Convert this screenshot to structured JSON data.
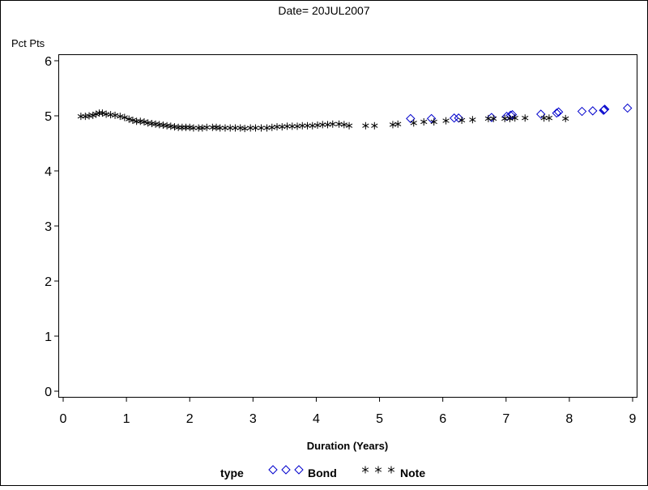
{
  "chart_data": {
    "type": "scatter",
    "title": "Date= 20JUL2007",
    "xlabel": "Duration (Years)",
    "ylabel": "Pct Pts",
    "xlim": [
      0,
      9
    ],
    "ylim": [
      0,
      6
    ],
    "xticks": [
      "0",
      "1",
      "2",
      "3",
      "4",
      "5",
      "6",
      "7",
      "8",
      "9"
    ],
    "yticks": [
      "0",
      "1",
      "2",
      "3",
      "4",
      "5",
      "6"
    ],
    "grid": false,
    "legend": {
      "title": "type",
      "position": "bottom",
      "entries": [
        {
          "label": "Bond",
          "symbol": "diamond",
          "color": "#0000cc"
        },
        {
          "label": "Note",
          "symbol": "asterisk",
          "color": "#000000"
        }
      ]
    },
    "series": [
      {
        "name": "Bond",
        "symbol": "diamond",
        "color": "#0000cc",
        "points": [
          [
            5.49,
            4.95
          ],
          [
            5.82,
            4.95
          ],
          [
            6.18,
            4.96
          ],
          [
            6.25,
            4.96
          ],
          [
            6.77,
            4.97
          ],
          [
            7.01,
            4.99
          ],
          [
            7.07,
            5.01
          ],
          [
            7.1,
            5.02
          ],
          [
            7.55,
            5.03
          ],
          [
            7.8,
            5.05
          ],
          [
            7.83,
            5.07
          ],
          [
            8.2,
            5.08
          ],
          [
            8.37,
            5.09
          ],
          [
            8.54,
            5.1
          ],
          [
            8.55,
            5.11
          ],
          [
            8.56,
            5.12
          ],
          [
            8.92,
            5.14
          ]
        ]
      },
      {
        "name": "Note",
        "symbol": "asterisk",
        "color": "#000000",
        "points": [
          [
            0.28,
            4.99
          ],
          [
            0.35,
            4.99
          ],
          [
            0.41,
            5.0
          ],
          [
            0.47,
            5.01
          ],
          [
            0.52,
            5.03
          ],
          [
            0.57,
            5.05
          ],
          [
            0.62,
            5.05
          ],
          [
            0.68,
            5.03
          ],
          [
            0.75,
            5.02
          ],
          [
            0.82,
            5.01
          ],
          [
            0.9,
            4.99
          ],
          [
            0.97,
            4.97
          ],
          [
            1.04,
            4.94
          ],
          [
            1.1,
            4.92
          ],
          [
            1.16,
            4.9
          ],
          [
            1.22,
            4.9
          ],
          [
            1.28,
            4.89
          ],
          [
            1.34,
            4.87
          ],
          [
            1.4,
            4.86
          ],
          [
            1.46,
            4.85
          ],
          [
            1.52,
            4.84
          ],
          [
            1.58,
            4.83
          ],
          [
            1.64,
            4.82
          ],
          [
            1.7,
            4.81
          ],
          [
            1.76,
            4.8
          ],
          [
            1.82,
            4.79
          ],
          [
            1.88,
            4.79
          ],
          [
            1.94,
            4.79
          ],
          [
            2.0,
            4.79
          ],
          [
            2.06,
            4.78
          ],
          [
            2.14,
            4.78
          ],
          [
            2.2,
            4.78
          ],
          [
            2.27,
            4.79
          ],
          [
            2.36,
            4.79
          ],
          [
            2.42,
            4.79
          ],
          [
            2.48,
            4.78
          ],
          [
            2.56,
            4.78
          ],
          [
            2.64,
            4.78
          ],
          [
            2.72,
            4.78
          ],
          [
            2.8,
            4.78
          ],
          [
            2.87,
            4.77
          ],
          [
            2.96,
            4.78
          ],
          [
            3.04,
            4.78
          ],
          [
            3.13,
            4.78
          ],
          [
            3.22,
            4.78
          ],
          [
            3.3,
            4.79
          ],
          [
            3.38,
            4.8
          ],
          [
            3.46,
            4.8
          ],
          [
            3.54,
            4.81
          ],
          [
            3.62,
            4.81
          ],
          [
            3.7,
            4.81
          ],
          [
            3.78,
            4.82
          ],
          [
            3.86,
            4.82
          ],
          [
            3.94,
            4.82
          ],
          [
            4.02,
            4.83
          ],
          [
            4.1,
            4.84
          ],
          [
            4.18,
            4.84
          ],
          [
            4.26,
            4.85
          ],
          [
            4.36,
            4.85
          ],
          [
            4.44,
            4.84
          ],
          [
            4.52,
            4.82
          ],
          [
            4.78,
            4.82
          ],
          [
            4.92,
            4.82
          ],
          [
            5.21,
            4.84
          ],
          [
            5.29,
            4.85
          ],
          [
            5.54,
            4.87
          ],
          [
            5.7,
            4.89
          ],
          [
            5.86,
            4.89
          ],
          [
            6.05,
            4.91
          ],
          [
            6.3,
            4.92
          ],
          [
            6.47,
            4.93
          ],
          [
            6.72,
            4.95
          ],
          [
            6.8,
            4.95
          ],
          [
            6.98,
            4.95
          ],
          [
            7.06,
            4.95
          ],
          [
            7.14,
            4.96
          ],
          [
            7.3,
            4.96
          ],
          [
            7.6,
            4.96
          ],
          [
            7.68,
            4.96
          ],
          [
            7.94,
            4.95
          ]
        ]
      }
    ]
  }
}
